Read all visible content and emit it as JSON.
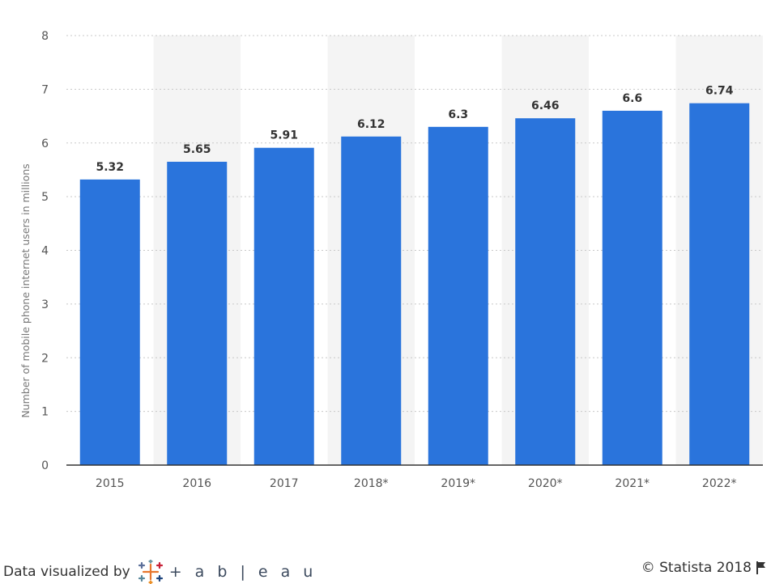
{
  "chart_data": {
    "type": "bar",
    "categories": [
      "2015",
      "2016",
      "2017",
      "2018*",
      "2019*",
      "2020*",
      "2021*",
      "2022*"
    ],
    "values": [
      5.32,
      5.65,
      5.91,
      6.12,
      6.3,
      6.46,
      6.6,
      6.74
    ],
    "value_labels": [
      "5.32",
      "5.65",
      "5.91",
      "6.12",
      "6.3",
      "6.46",
      "6.6",
      "6.74"
    ],
    "ylabel": "Number of mobile phone internet users in millions",
    "ylim": [
      0,
      8
    ],
    "yticks": [
      "0",
      "1",
      "2",
      "3",
      "4",
      "5",
      "6",
      "7",
      "8"
    ],
    "grid": true,
    "bar_color": "#2a74dc",
    "alt_band_color": "#f4f4f4"
  },
  "footer": {
    "left_text": "Data visualized by",
    "tableau_brand": "+ a b | e a u",
    "tableau_icon": "tableau-logo-icon",
    "copyright": "© Statista 2018",
    "flag_icon": "flag-icon"
  }
}
